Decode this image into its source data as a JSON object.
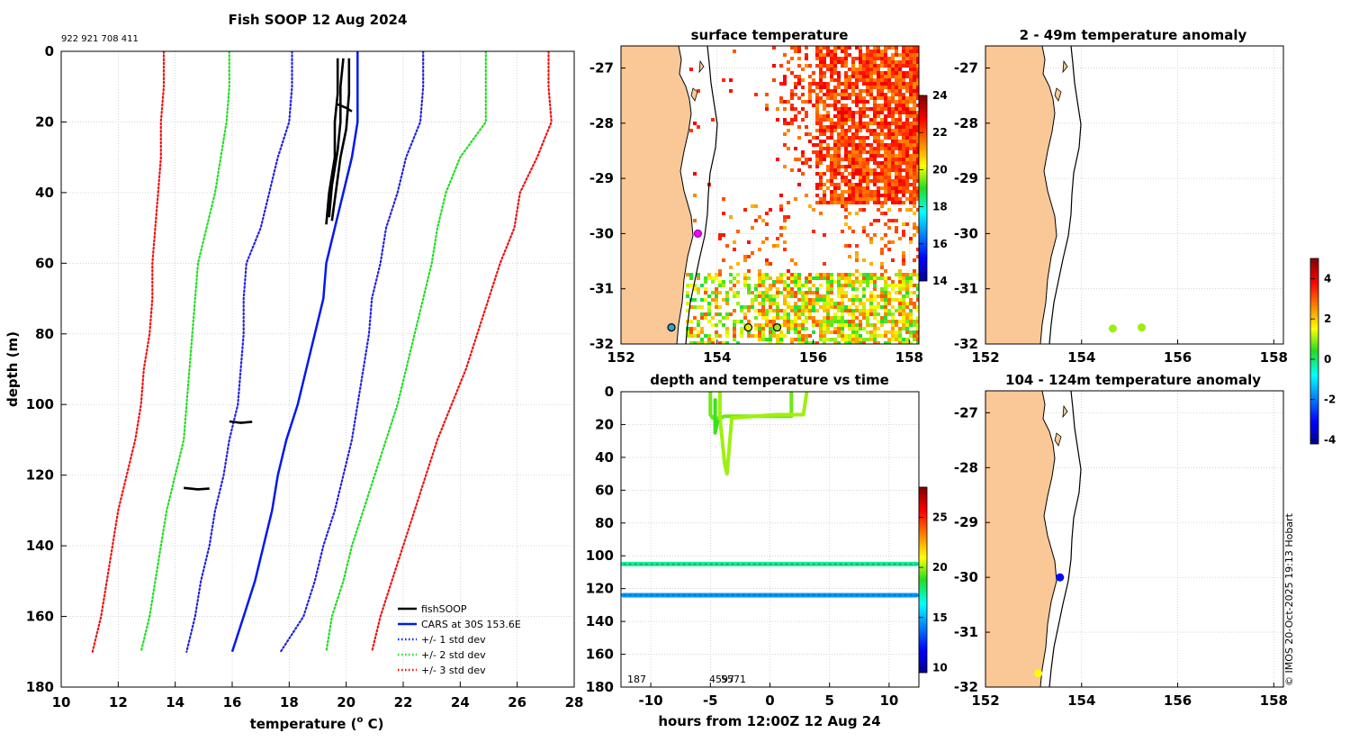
{
  "colors": {
    "land": "#fac896",
    "cars": "#0018f0",
    "std1": "#2222e0",
    "std2": "#22dd22",
    "std3": "#ee1111",
    "fish": "#000000",
    "grid": "#bbbbbb"
  },
  "timestamp": "© IMOS 20-Oct-2025 19:13 Hobart",
  "chart_data": [
    {
      "id": "profile",
      "type": "line",
      "title": "Fish SOOP 12 Aug 2024",
      "subtitle": "922 921 708 411",
      "xlabel": "temperature (",
      "xlabel_sup": "o",
      "xlabel_suffix": " C)",
      "ylabel": "depth (m)",
      "xlim": [
        10,
        28
      ],
      "ylim": [
        180,
        0
      ],
      "x_ticks": [
        "10",
        "12",
        "14",
        "16",
        "18",
        "20",
        "22",
        "24",
        "26",
        "28"
      ],
      "y_ticks": [
        "0",
        "20",
        "40",
        "60",
        "80",
        "100",
        "120",
        "140",
        "160",
        "180"
      ],
      "grid": true,
      "legend_position": "bottom-right",
      "legend": [
        {
          "label": "fishSOOP",
          "series": "fishSOOP"
        },
        {
          "label": "CARS at 30S 153.6E",
          "series": "cars"
        },
        {
          "label": "+/- 1 std dev",
          "series": "std1"
        },
        {
          "label": "+/- 2 std dev",
          "series": "std2"
        },
        {
          "label": "+/- 3 std dev",
          "series": "std3"
        }
      ],
      "depths": [
        0,
        10,
        20,
        30,
        40,
        50,
        60,
        70,
        80,
        90,
        100,
        110,
        120,
        130,
        140,
        150,
        160,
        170
      ],
      "series": [
        {
          "name": "cars",
          "style": "solid",
          "values": [
            20.4,
            20.4,
            20.4,
            20.2,
            19.9,
            19.6,
            19.3,
            19.2,
            18.9,
            18.6,
            18.3,
            17.9,
            17.6,
            17.4,
            17.1,
            16.8,
            16.4,
            16.0
          ]
        },
        {
          "name": "std1",
          "style": "dotted",
          "low": [
            18.1,
            18.1,
            18.0,
            17.6,
            17.3,
            17.0,
            16.5,
            16.4,
            16.4,
            16.3,
            16.2,
            15.9,
            15.7,
            15.4,
            15.2,
            14.9,
            14.7,
            14.4
          ],
          "high": [
            22.7,
            22.7,
            22.6,
            22.1,
            21.8,
            21.4,
            21.2,
            20.9,
            20.8,
            20.6,
            20.4,
            20.2,
            19.9,
            19.6,
            19.2,
            18.9,
            18.5,
            17.7
          ]
        },
        {
          "name": "std2",
          "style": "dotted",
          "low": [
            15.9,
            15.9,
            15.8,
            15.6,
            15.4,
            15.1,
            14.8,
            14.7,
            14.6,
            14.5,
            14.4,
            14.3,
            14.0,
            13.7,
            13.5,
            13.3,
            13.1,
            12.8
          ]
        },
        {
          "name": "std2",
          "style": "dotted",
          "high": [
            24.9,
            24.9,
            24.9,
            24.0,
            23.5,
            23.2,
            23.0,
            22.7,
            22.4,
            22.1,
            21.8,
            21.4,
            21.0,
            20.6,
            20.2,
            19.9,
            19.5,
            19.3
          ]
        },
        {
          "name": "std3",
          "style": "dotted",
          "low": [
            13.6,
            13.6,
            13.5,
            13.5,
            13.4,
            13.3,
            13.2,
            13.2,
            13.1,
            12.9,
            12.8,
            12.6,
            12.3,
            12.0,
            11.8,
            11.6,
            11.4,
            11.1
          ]
        },
        {
          "name": "std3",
          "style": "dotted",
          "high": [
            27.1,
            27.1,
            27.2,
            26.7,
            26.1,
            25.9,
            25.4,
            25.0,
            24.6,
            24.2,
            23.7,
            23.2,
            22.8,
            22.4,
            22.0,
            21.6,
            21.2,
            20.9
          ]
        }
      ],
      "fishSOOP": [
        {
          "points": [
            [
              19.7,
              2
            ],
            [
              19.7,
              12
            ],
            [
              19.6,
              20
            ],
            [
              19.6,
              30
            ],
            [
              19.4,
              40
            ],
            [
              19.3,
              49
            ]
          ]
        },
        {
          "points": [
            [
              19.9,
              2
            ],
            [
              19.8,
              10
            ],
            [
              19.8,
              20
            ],
            [
              19.7,
              28
            ],
            [
              19.5,
              38
            ],
            [
              19.4,
              47
            ]
          ]
        },
        {
          "points": [
            [
              20.1,
              2
            ],
            [
              20.1,
              12
            ],
            [
              20.0,
              22
            ],
            [
              19.8,
              30
            ],
            [
              19.6,
              42
            ],
            [
              19.5,
              48
            ]
          ]
        },
        {
          "points": [
            [
              19.7,
              15
            ],
            [
              20.0,
              16
            ],
            [
              20.2,
              17
            ]
          ]
        },
        {
          "points": [
            [
              15.9,
              104.8
            ],
            [
              16.3,
              105.2
            ],
            [
              16.7,
              104.9
            ]
          ]
        },
        {
          "points": [
            [
              14.3,
              123.6
            ],
            [
              14.8,
              124.0
            ],
            [
              15.2,
              123.8
            ]
          ]
        }
      ]
    },
    {
      "id": "surface",
      "type": "heatmap",
      "title": "surface temperature",
      "xlim": [
        152,
        158.2
      ],
      "ylim": [
        -32,
        -26.6
      ],
      "x_ticks": [
        "152",
        "154",
        "156",
        "158"
      ],
      "y_ticks": [
        "-27",
        "-28",
        "-29",
        "-30",
        "-31",
        "-32"
      ],
      "colorbar": {
        "min": 14,
        "max": 24,
        "ticks": [
          "14",
          "16",
          "18",
          "20",
          "22",
          "24"
        ]
      },
      "markers": [
        {
          "lon": 153.6,
          "lat": -30.0,
          "color": "#ff00ff",
          "ring": "#8800aa"
        },
        {
          "lon": 153.05,
          "lat": -31.7,
          "color": "#22a6e0",
          "ring": "#000000"
        },
        {
          "lon": 154.65,
          "lat": -31.7,
          "color": "#e8e800",
          "ring": "#000000"
        },
        {
          "lon": 155.25,
          "lat": -31.7,
          "color": "#a8e020",
          "ring": "#000000"
        }
      ]
    },
    {
      "id": "anom_shallow",
      "type": "scatter",
      "title": "2 - 49m temperature anomaly",
      "xlim": [
        152,
        158.2
      ],
      "ylim": [
        -32,
        -26.6
      ],
      "x_ticks": [
        "152",
        "154",
        "156",
        "158"
      ],
      "y_ticks": [
        "-27",
        "-28",
        "-29",
        "-30",
        "-31",
        "-32"
      ],
      "points": [
        {
          "lon": 154.65,
          "lat": -31.72,
          "anomaly": 1.0
        },
        {
          "lon": 155.25,
          "lat": -31.7,
          "anomaly": 1.0
        }
      ]
    },
    {
      "id": "anom_deep",
      "type": "scatter",
      "title": "104 - 124m temperature anomaly",
      "xlim": [
        152,
        158.2
      ],
      "ylim": [
        -32,
        -26.6
      ],
      "x_ticks": [
        "152",
        "154",
        "156",
        "158"
      ],
      "y_ticks": [
        "-27",
        "-28",
        "-29",
        "-30",
        "-31",
        "-32"
      ],
      "points": [
        {
          "lon": 153.55,
          "lat": -30.0,
          "anomaly": -3.0
        },
        {
          "lon": 153.1,
          "lat": -31.75,
          "anomaly": 1.5
        }
      ]
    },
    {
      "id": "anom_colorbar",
      "type": "heatmap",
      "min": -4.2,
      "max": 5.0,
      "ticks": [
        "-4",
        "-2",
        "0",
        "2",
        "4"
      ],
      "tick_values": [
        -4,
        -2,
        0,
        2,
        4
      ]
    },
    {
      "id": "depth_time",
      "type": "scatter",
      "title": "depth and temperature vs time",
      "xlabel": "hours from 12:00Z 12 Aug 24",
      "xlim": [
        -12.5,
        12.5
      ],
      "ylim": [
        180,
        0
      ],
      "x_ticks": [
        "-10",
        "-5",
        "0",
        "5",
        "10"
      ],
      "y_ticks": [
        "0",
        "20",
        "40",
        "60",
        "80",
        "100",
        "120",
        "140",
        "160",
        "180"
      ],
      "colorbar": {
        "min": 9.5,
        "max": 28,
        "ticks": [
          "10",
          "15",
          "20",
          "25"
        ]
      },
      "annotations": [
        "187",
        "4597",
        "5571"
      ],
      "tracks": [
        {
          "temperature": 19.5,
          "points": [
            [
              -5.0,
              0
            ],
            [
              -5.0,
              14
            ],
            [
              -4.8,
              16
            ],
            [
              -4.2,
              16
            ],
            [
              -3.8,
              15
            ],
            [
              -3.5,
              15
            ],
            [
              -2.0,
              15
            ],
            [
              1.8,
              15
            ],
            [
              1.8,
              0
            ]
          ]
        },
        {
          "temperature": 20.0,
          "points": [
            [
              -4.2,
              0
            ],
            [
              -4.2,
              16
            ],
            [
              -3.8,
              44
            ],
            [
              -3.6,
              50
            ],
            [
              -3.2,
              16
            ],
            [
              0.5,
              14
            ],
            [
              2.8,
              14
            ],
            [
              3.1,
              0
            ]
          ]
        },
        {
          "temperature": 19.0,
          "points": [
            [
              -4.6,
              5
            ],
            [
              -4.6,
              25
            ],
            [
              -4.4,
              18
            ]
          ]
        }
      ],
      "bands": [
        {
          "depth": 105,
          "temperature": 17.5,
          "x_from": -12.3,
          "x_to": 12.3
        },
        {
          "depth": 124,
          "temperature": 14.5,
          "x_from": -12.3,
          "x_to": 12.3
        }
      ]
    }
  ]
}
